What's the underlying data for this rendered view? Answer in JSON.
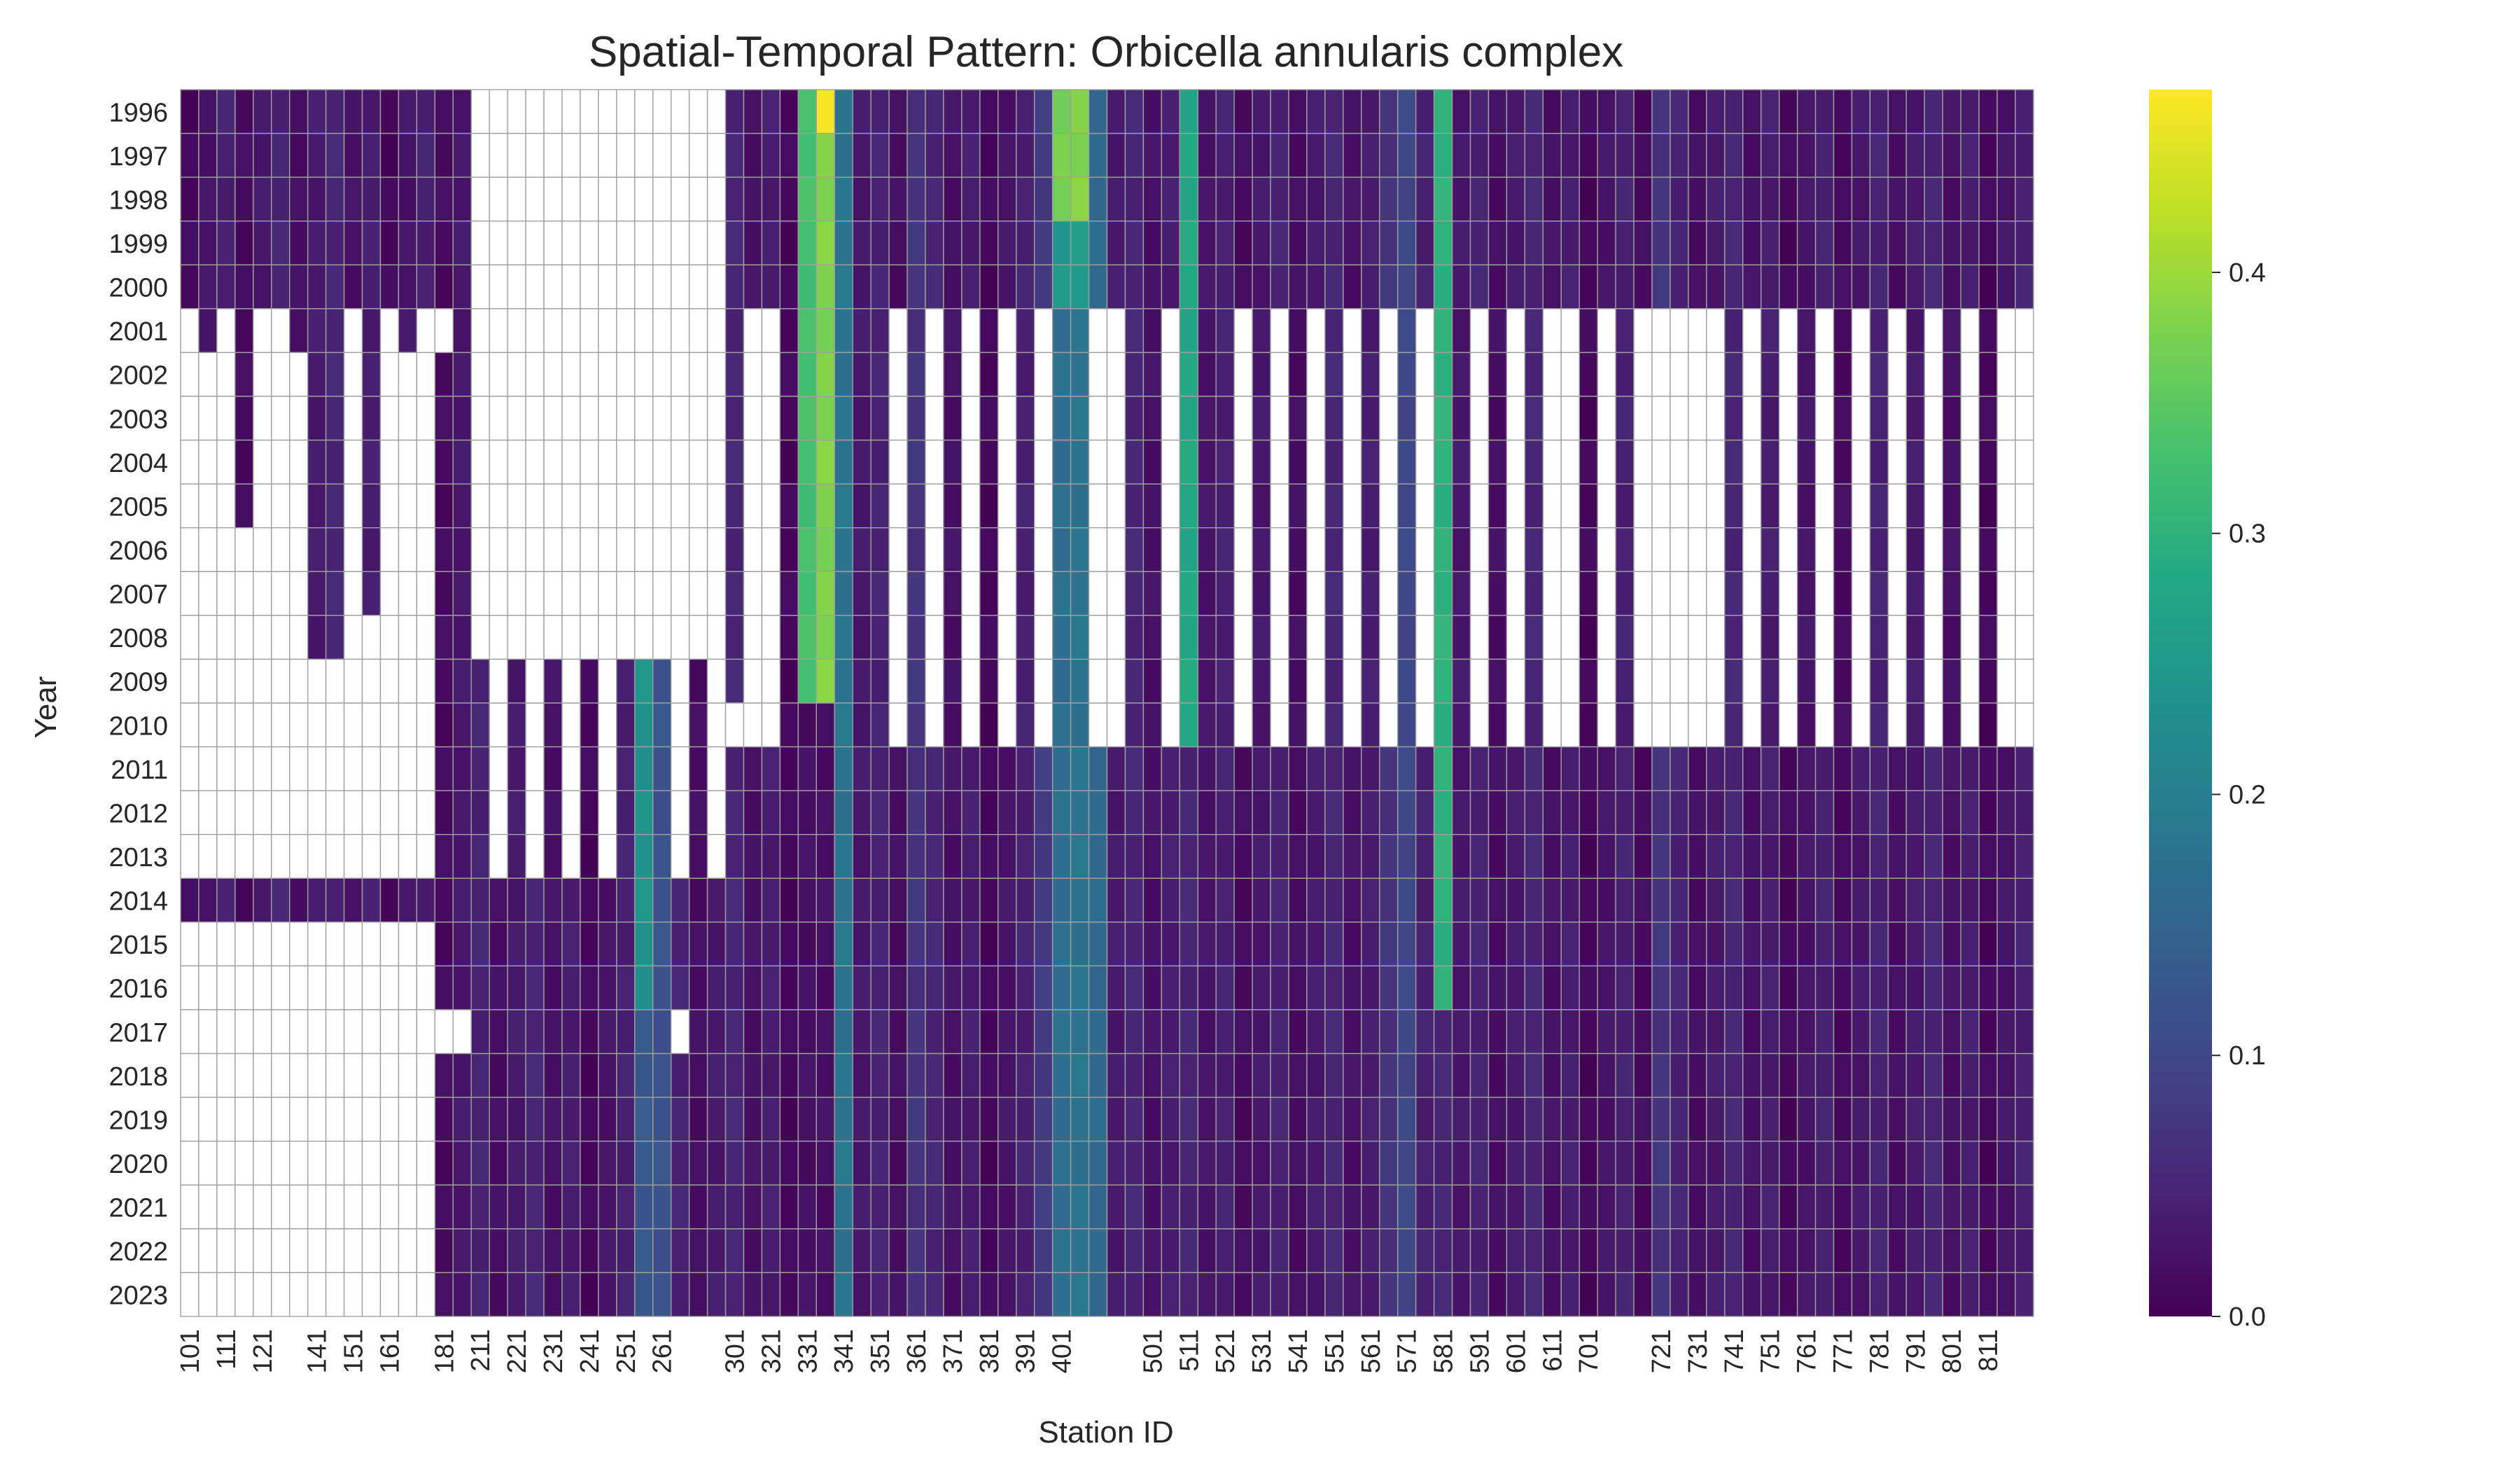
{
  "chart_data": {
    "type": "heatmap",
    "title": "Spatial-Temporal Pattern: Orbicella annularis complex",
    "xlabel": "Station ID",
    "ylabel": "Year",
    "colormap": "viridis",
    "vmin": 0.0,
    "vmax": 0.47,
    "missing_color": "#ffffff",
    "cell_edge_color": "#a0a0a0",
    "colorbar_ticks": [
      0.0,
      0.1,
      0.2,
      0.3,
      0.4
    ],
    "colorbar_tick_labels": [
      "0.0",
      "0.1",
      "0.2",
      "0.3",
      "0.4"
    ],
    "years": [
      1996,
      1997,
      1998,
      1999,
      2000,
      2001,
      2002,
      2003,
      2004,
      2005,
      2006,
      2007,
      2008,
      2009,
      2010,
      2011,
      2012,
      2013,
      2014,
      2015,
      2016,
      2017,
      2018,
      2019,
      2020,
      2021,
      2022,
      2023
    ],
    "stations": [
      "101",
      "106",
      "111",
      "116",
      "121",
      "126",
      "131",
      "141",
      "146",
      "151",
      "156",
      "161",
      "166",
      "171",
      "181",
      "186",
      "211",
      "216",
      "221",
      "226",
      "231",
      "236",
      "241",
      "246",
      "251",
      "256",
      "261",
      "266",
      "271",
      "276",
      "301",
      "311",
      "321",
      "326",
      "331",
      "336",
      "341",
      "346",
      "351",
      "356",
      "361",
      "366",
      "371",
      "376",
      "381",
      "386",
      "391",
      "396",
      "401",
      "406",
      "411",
      "416",
      "421",
      "501",
      "506",
      "511",
      "516",
      "521",
      "526",
      "531",
      "536",
      "541",
      "546",
      "551",
      "556",
      "561",
      "566",
      "571",
      "576",
      "581",
      "586",
      "591",
      "596",
      "601",
      "606",
      "611",
      "616",
      "701",
      "706",
      "711",
      "716",
      "721",
      "726",
      "731",
      "736",
      "741",
      "746",
      "751",
      "756",
      "761",
      "766",
      "771",
      "776",
      "781",
      "786",
      "791",
      "796",
      "801",
      "806",
      "811",
      "816",
      "821"
    ],
    "x_tick_labels": [
      "101",
      "111",
      "121",
      "141",
      "151",
      "161",
      "181",
      "211",
      "221",
      "231",
      "241",
      "251",
      "261",
      "301",
      "321",
      "331",
      "341",
      "351",
      "361",
      "371",
      "381",
      "391",
      "401",
      "501",
      "511",
      "521",
      "531",
      "541",
      "551",
      "561",
      "571",
      "581",
      "591",
      "601",
      "611",
      "701",
      "721",
      "731",
      "741",
      "751",
      "761",
      "771",
      "781",
      "791",
      "801",
      "811"
    ],
    "missing_periods": [
      [
        [
          0,
          0
        ],
        [
          0,
          1
        ],
        [
          0,
          2
        ],
        [
          0,
          3
        ],
        [
          0,
          4
        ],
        [
          0,
          5
        ],
        [
          0,
          6
        ],
        [
          0,
          7
        ],
        [
          0,
          8
        ],
        [
          0,
          9
        ],
        [
          0,
          10
        ],
        [
          0,
          11
        ],
        [
          0,
          12
        ],
        [
          0,
          13
        ],
        [
          0,
          15
        ],
        [
          0,
          16
        ],
        [
          0,
          17
        ],
        [
          0,
          18
        ],
        [
          0,
          19
        ],
        [
          0,
          20
        ],
        [
          0,
          21
        ],
        [
          0,
          22
        ],
        [
          0,
          23
        ],
        [
          0,
          24
        ],
        [
          0,
          25
        ],
        [
          0,
          26
        ],
        [
          0,
          27
        ]
      ],
      [
        [
          0,
          0
        ],
        [
          0,
          4
        ],
        [
          14,
          18
        ]
      ]
    ],
    "value_profiles": {
      "331": {
        "1996": 0.36,
        "2001": 0.28,
        "2009": 0.36
      },
      "336": {
        "1996": 0.47,
        "2001": 0.33,
        "2009": 0.38
      },
      "401": {
        "1996": 0.36,
        "2001": 0.24
      },
      "406": {
        "1996": 0.4,
        "2001": 0.25
      },
      "511": {
        "1996": 0.3,
        "2010": 0.28
      },
      "581": {
        "1996": 0.32,
        "2016": 0.3
      },
      "256": {
        "2009": 0.25,
        "2023": 0.12
      }
    }
  }
}
